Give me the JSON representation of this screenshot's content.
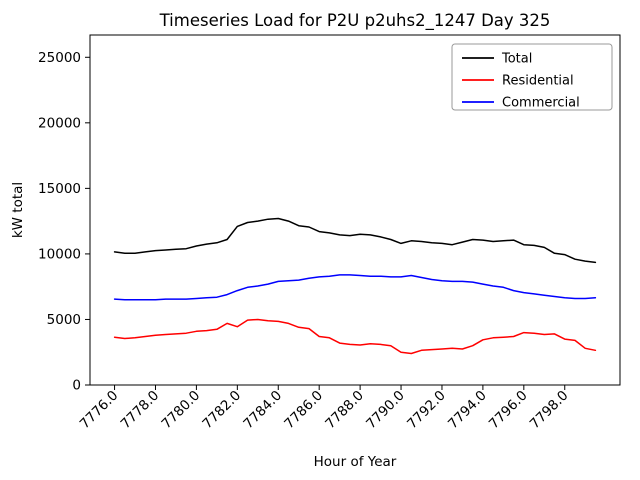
{
  "title": "Timeseries Load for P2U p2uhs2_1247  Day 325",
  "chart_data": {
    "type": "line",
    "title": "Timeseries Load for P2U p2uhs2_1247  Day 325",
    "xlabel": "Hour of Year",
    "ylabel": "kW total",
    "xlim": [
      7774.8,
      7800.7
    ],
    "ylim": [
      0,
      26700
    ],
    "grid": false,
    "legend_position": "upper right",
    "xticks": [
      7776,
      7778,
      7780,
      7782,
      7784,
      7786,
      7788,
      7790,
      7792,
      7794,
      7796,
      7798
    ],
    "xtick_labels": [
      "7776.0",
      "7778.0",
      "7780.0",
      "7782.0",
      "7784.0",
      "7786.0",
      "7788.0",
      "7790.0",
      "7792.0",
      "7794.0",
      "7796.0",
      "7798.0"
    ],
    "yticks": [
      0,
      5000,
      10000,
      15000,
      20000,
      25000
    ],
    "ytick_labels": [
      "0",
      "5000",
      "10000",
      "15000",
      "20000",
      "25000"
    ],
    "x": [
      7776.0,
      7776.5,
      7777.0,
      7777.5,
      7778.0,
      7778.5,
      7779.0,
      7779.5,
      7780.0,
      7780.5,
      7781.0,
      7781.5,
      7782.0,
      7782.5,
      7783.0,
      7783.5,
      7784.0,
      7784.5,
      7785.0,
      7785.5,
      7786.0,
      7786.5,
      7787.0,
      7787.5,
      7788.0,
      7788.5,
      7789.0,
      7789.5,
      7790.0,
      7790.5,
      7791.0,
      7791.5,
      7792.0,
      7792.5,
      7793.0,
      7793.5,
      7794.0,
      7794.5,
      7795.0,
      7795.5,
      7796.0,
      7796.5,
      7797.0,
      7797.5,
      7798.0,
      7798.5,
      7799.0,
      7799.5
    ],
    "series": [
      {
        "name": "Total",
        "color": "#000000",
        "values": [
          10150,
          10050,
          10050,
          10150,
          10250,
          10300,
          10350,
          10400,
          10600,
          10750,
          10850,
          11100,
          12100,
          12400,
          12500,
          12650,
          12700,
          12500,
          12150,
          12050,
          11700,
          11600,
          11450,
          11400,
          11500,
          11450,
          11300,
          11100,
          10800,
          11000,
          10950,
          10850,
          10800,
          10700,
          10900,
          11100,
          11050,
          10950,
          11000,
          11050,
          10700,
          10650,
          10500,
          10050,
          9950,
          9600,
          9450,
          9350
        ]
      },
      {
        "name": "Residential",
        "color": "#ff0000",
        "values": [
          3650,
          3550,
          3600,
          3700,
          3800,
          3850,
          3900,
          3950,
          4100,
          4150,
          4250,
          4700,
          4450,
          4950,
          5000,
          4900,
          4850,
          4700,
          4400,
          4300,
          3700,
          3600,
          3200,
          3100,
          3050,
          3150,
          3100,
          3000,
          2500,
          2400,
          2650,
          2700,
          2750,
          2800,
          2750,
          3000,
          3450,
          3600,
          3650,
          3700,
          4000,
          3950,
          3850,
          3900,
          3500,
          3400,
          2800,
          2650
        ]
      },
      {
        "name": "Commercial",
        "color": "#0000ff",
        "values": [
          6550,
          6500,
          6500,
          6500,
          6500,
          6550,
          6550,
          6550,
          6600,
          6650,
          6700,
          6900,
          7200,
          7450,
          7550,
          7700,
          7900,
          7950,
          8000,
          8150,
          8250,
          8300,
          8400,
          8400,
          8350,
          8300,
          8300,
          8250,
          8250,
          8350,
          8200,
          8050,
          7950,
          7900,
          7900,
          7850,
          7700,
          7550,
          7450,
          7200,
          7050,
          6950,
          6850,
          6750,
          6650,
          6600,
          6600,
          6650
        ]
      }
    ]
  }
}
